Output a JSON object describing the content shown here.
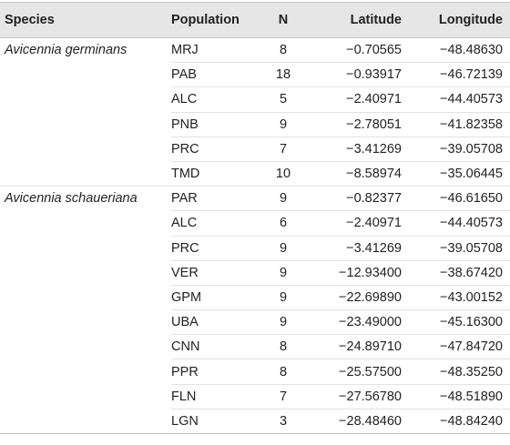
{
  "headers": {
    "species": "Species",
    "population": "Population",
    "n": "N",
    "latitude": "Latitude",
    "longitude": "Longitude"
  },
  "rows": [
    {
      "species": "Avicennia germinans",
      "population": "MRJ",
      "n": "8",
      "latitude": "−0.70565",
      "longitude": "−48.48630"
    },
    {
      "species": "",
      "population": "PAB",
      "n": "18",
      "latitude": "−0.93917",
      "longitude": "−46.72139"
    },
    {
      "species": "",
      "population": "ALC",
      "n": "5",
      "latitude": "−2.40971",
      "longitude": "−44.40573"
    },
    {
      "species": "",
      "population": "PNB",
      "n": "9",
      "latitude": "−2.78051",
      "longitude": "−41.82358"
    },
    {
      "species": "",
      "population": "PRC",
      "n": "7",
      "latitude": "−3.41269",
      "longitude": "−39.05708"
    },
    {
      "species": "",
      "population": "TMD",
      "n": "10",
      "latitude": "−8.58974",
      "longitude": "−35.06445"
    },
    {
      "species": "Avicennia schaueriana",
      "population": "PAR",
      "n": "9",
      "latitude": "−0.82377",
      "longitude": "−46.61650"
    },
    {
      "species": "",
      "population": "ALC",
      "n": "6",
      "latitude": "−2.40971",
      "longitude": "−44.40573"
    },
    {
      "species": "",
      "population": "PRC",
      "n": "9",
      "latitude": "−3.41269",
      "longitude": "−39.05708"
    },
    {
      "species": "",
      "population": "VER",
      "n": "9",
      "latitude": "−12.93400",
      "longitude": "−38.67420"
    },
    {
      "species": "",
      "population": "GPM",
      "n": "9",
      "latitude": "−22.69890",
      "longitude": "−43.00152"
    },
    {
      "species": "",
      "population": "UBA",
      "n": "9",
      "latitude": "−23.49000",
      "longitude": "−45.16300"
    },
    {
      "species": "",
      "population": "CNN",
      "n": "8",
      "latitude": "−24.89710",
      "longitude": "−47.84720"
    },
    {
      "species": "",
      "population": "PPR",
      "n": "8",
      "latitude": "−25.57500",
      "longitude": "−48.35250"
    },
    {
      "species": "",
      "population": "FLN",
      "n": "7",
      "latitude": "−27.56780",
      "longitude": "−48.51890"
    },
    {
      "species": "",
      "population": "LGN",
      "n": "3",
      "latitude": "−28.48460",
      "longitude": "−48.84240"
    }
  ]
}
